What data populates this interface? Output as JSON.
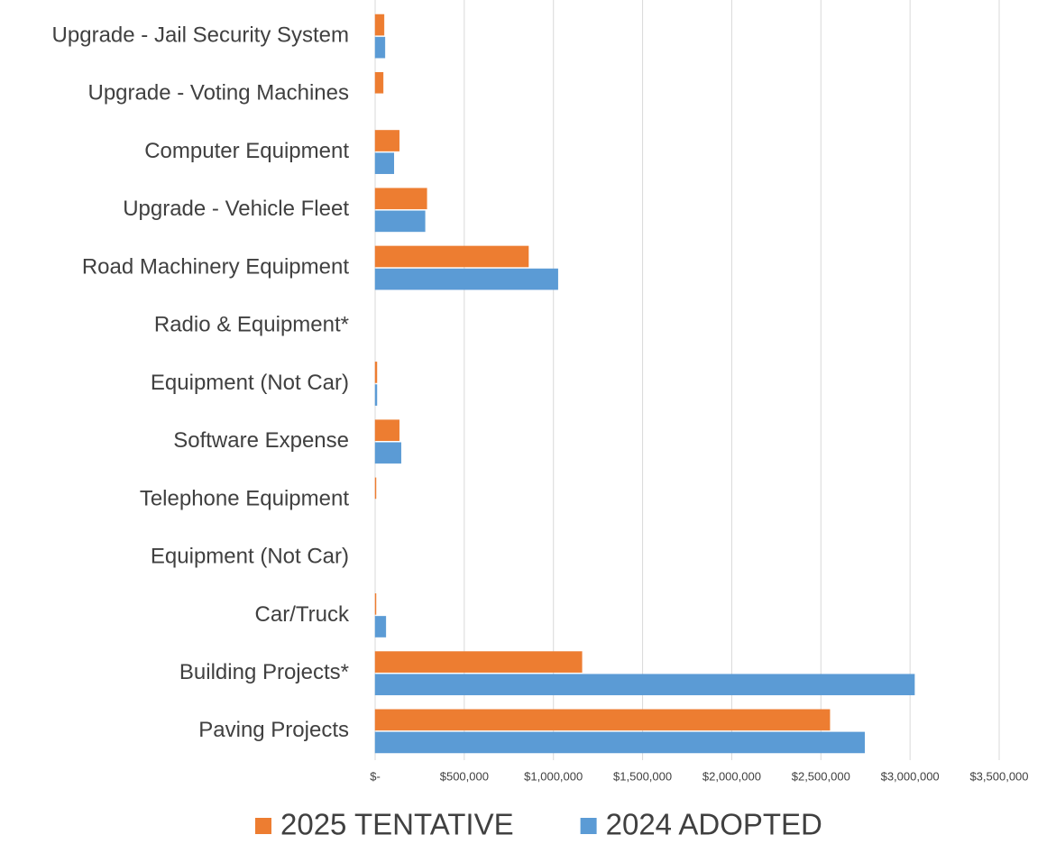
{
  "chart_data": {
    "type": "barh",
    "categories": [
      "Upgrade - Jail Security System",
      "Upgrade - Voting Machines",
      "Computer Equipment",
      "Upgrade - Vehicle Fleet",
      "Road Machinery Equipment",
      "Radio & Equipment*",
      "Equipment (Not Car)",
      "Software Expense",
      "Telephone Equipment",
      "Equipment (Not Car)",
      "Car/Truck",
      "Building Projects*",
      "Paving Projects"
    ],
    "series": [
      {
        "name": "2025 TENTATIVE",
        "color": "#ed7d31",
        "values": [
          50000,
          45000,
          135000,
          290000,
          860000,
          0,
          10000,
          135000,
          5000,
          0,
          5000,
          1160000,
          2550000
        ]
      },
      {
        "name": "2024 ADOPTED",
        "color": "#5b9bd5",
        "values": [
          55000,
          0,
          105000,
          280000,
          1025000,
          0,
          10000,
          145000,
          0,
          0,
          60000,
          3025000,
          2745000
        ]
      }
    ],
    "xlim": [
      0,
      3500000
    ],
    "xticks": [
      {
        "value": 0,
        "label": "$-"
      },
      {
        "value": 500000,
        "label": "$500,000"
      },
      {
        "value": 1000000,
        "label": "$1,000,000"
      },
      {
        "value": 1500000,
        "label": "$1,500,000"
      },
      {
        "value": 2000000,
        "label": "$2,000,000"
      },
      {
        "value": 2500000,
        "label": "$2,500,000"
      },
      {
        "value": 3000000,
        "label": "$3,000,000"
      },
      {
        "value": 3500000,
        "label": "$3,500,000"
      }
    ],
    "grid": true,
    "legend": "bottom"
  }
}
